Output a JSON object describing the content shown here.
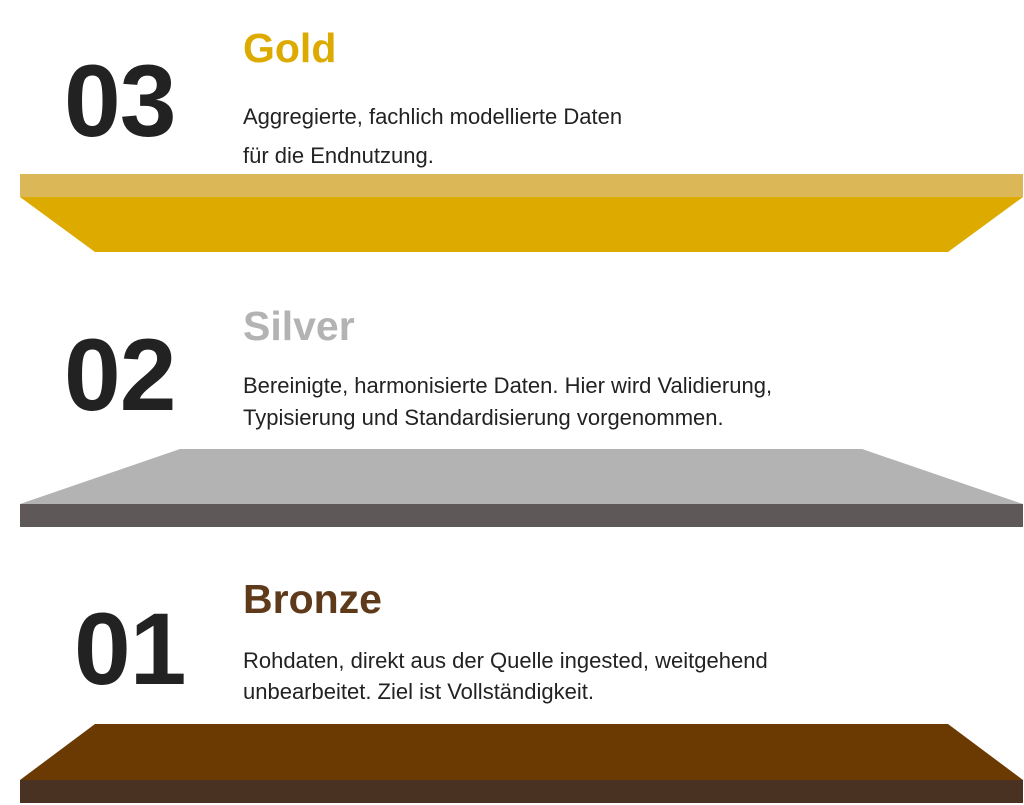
{
  "layers": [
    {
      "number": "03",
      "title": "Gold",
      "lines": [
        "Aggregierte, fachlich modellierte Daten",
        "für die Endnutzung."
      ],
      "colors": {
        "title": "#DDAA00",
        "face": "#DDAA00",
        "edge": "#DBB758"
      }
    },
    {
      "number": "02",
      "title": "Silver",
      "lines": [
        "Bereinigte, harmonisierte Daten. Hier wird Validierung,",
        "Typisierung und Standardisierung vorgenommen."
      ],
      "colors": {
        "title": "#B3B3B3",
        "face": "#B3B3B3",
        "edge": "#5E5858"
      }
    },
    {
      "number": "01",
      "title": "Bronze",
      "lines": [
        "Rohdaten, direkt aus der Quelle ingested, weitgehend",
        "unbearbeitet. Ziel ist Vollständigkeit."
      ],
      "colors": {
        "title": "#5E3A1A",
        "face": "#6B3902",
        "edge": "#4A3222"
      }
    }
  ]
}
